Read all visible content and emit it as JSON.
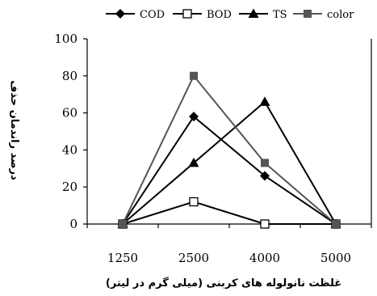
{
  "chart_data": {
    "type": "line",
    "categories": [
      "1250",
      "2500",
      "4000",
      "5000"
    ],
    "series": [
      {
        "name": "COD",
        "values": [
          0,
          58,
          26,
          0
        ],
        "marker": "diamond-filled",
        "color": "#000000"
      },
      {
        "name": "BOD",
        "values": [
          0,
          12,
          0,
          0
        ],
        "marker": "square-open",
        "color": "#000000"
      },
      {
        "name": "TS",
        "values": [
          0,
          33,
          66,
          0
        ],
        "marker": "triangle-filled",
        "color": "#000000"
      },
      {
        "name": "color",
        "values": [
          0,
          80,
          33,
          0
        ],
        "marker": "square-filled",
        "color": "#555555"
      }
    ],
    "ylim": [
      0,
      100
    ],
    "yticks": [
      "0",
      "20",
      "40",
      "60",
      "80",
      "100"
    ],
    "xlabel": "غلظت نانولوله های کربنی (میلی گرم در لیتر)",
    "ylabel": "درصد راندمان حذف",
    "legend_position": "top",
    "grid": false
  }
}
